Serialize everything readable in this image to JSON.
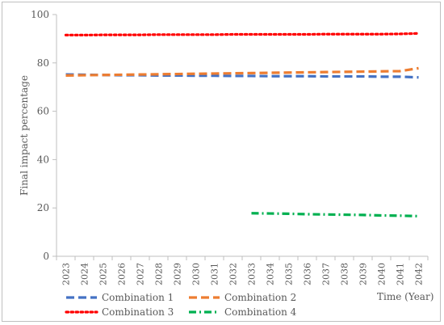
{
  "chart_data": {
    "type": "line",
    "title": "",
    "xlabel": "Time (Year)",
    "ylabel": "Final impact percentage",
    "ylim": [
      0,
      100
    ],
    "yticks": [
      0,
      20,
      40,
      60,
      80,
      100
    ],
    "categories": [
      "2023",
      "2024",
      "2025",
      "2026",
      "2027",
      "2028",
      "2029",
      "2030",
      "2031",
      "2032",
      "2033",
      "2034",
      "2035",
      "2036",
      "2037",
      "2038",
      "2039",
      "2040",
      "2041",
      "2042"
    ],
    "grid": false,
    "legend_position": "bottom",
    "series": [
      {
        "name": "Combination 1",
        "color": "#4472C4",
        "dash": "dashed",
        "values": [
          75.2,
          75.1,
          75.0,
          74.9,
          74.9,
          74.8,
          74.8,
          74.7,
          74.7,
          74.6,
          74.6,
          74.5,
          74.5,
          74.5,
          74.4,
          74.4,
          74.4,
          74.3,
          74.3,
          74.0
        ]
      },
      {
        "name": "Combination 2",
        "color": "#ED7D31",
        "dash": "dashed",
        "values": [
          74.8,
          74.9,
          75.0,
          75.1,
          75.2,
          75.3,
          75.4,
          75.5,
          75.6,
          75.7,
          75.8,
          75.9,
          76.0,
          76.1,
          76.2,
          76.3,
          76.4,
          76.5,
          76.6,
          77.8
        ]
      },
      {
        "name": "Combination 3",
        "color": "#FF0000",
        "dash": "dotted",
        "values": [
          91.5,
          91.5,
          91.6,
          91.6,
          91.6,
          91.7,
          91.7,
          91.7,
          91.7,
          91.8,
          91.8,
          91.8,
          91.8,
          91.8,
          91.9,
          91.9,
          91.9,
          91.9,
          92.0,
          92.2
        ]
      },
      {
        "name": "Combination 4",
        "color": "#00B050",
        "dash": "dashdot",
        "values": [
          null,
          null,
          null,
          null,
          null,
          null,
          null,
          null,
          null,
          null,
          17.8,
          17.7,
          17.6,
          17.4,
          17.3,
          17.2,
          17.1,
          16.9,
          16.8,
          16.6
        ]
      }
    ]
  }
}
